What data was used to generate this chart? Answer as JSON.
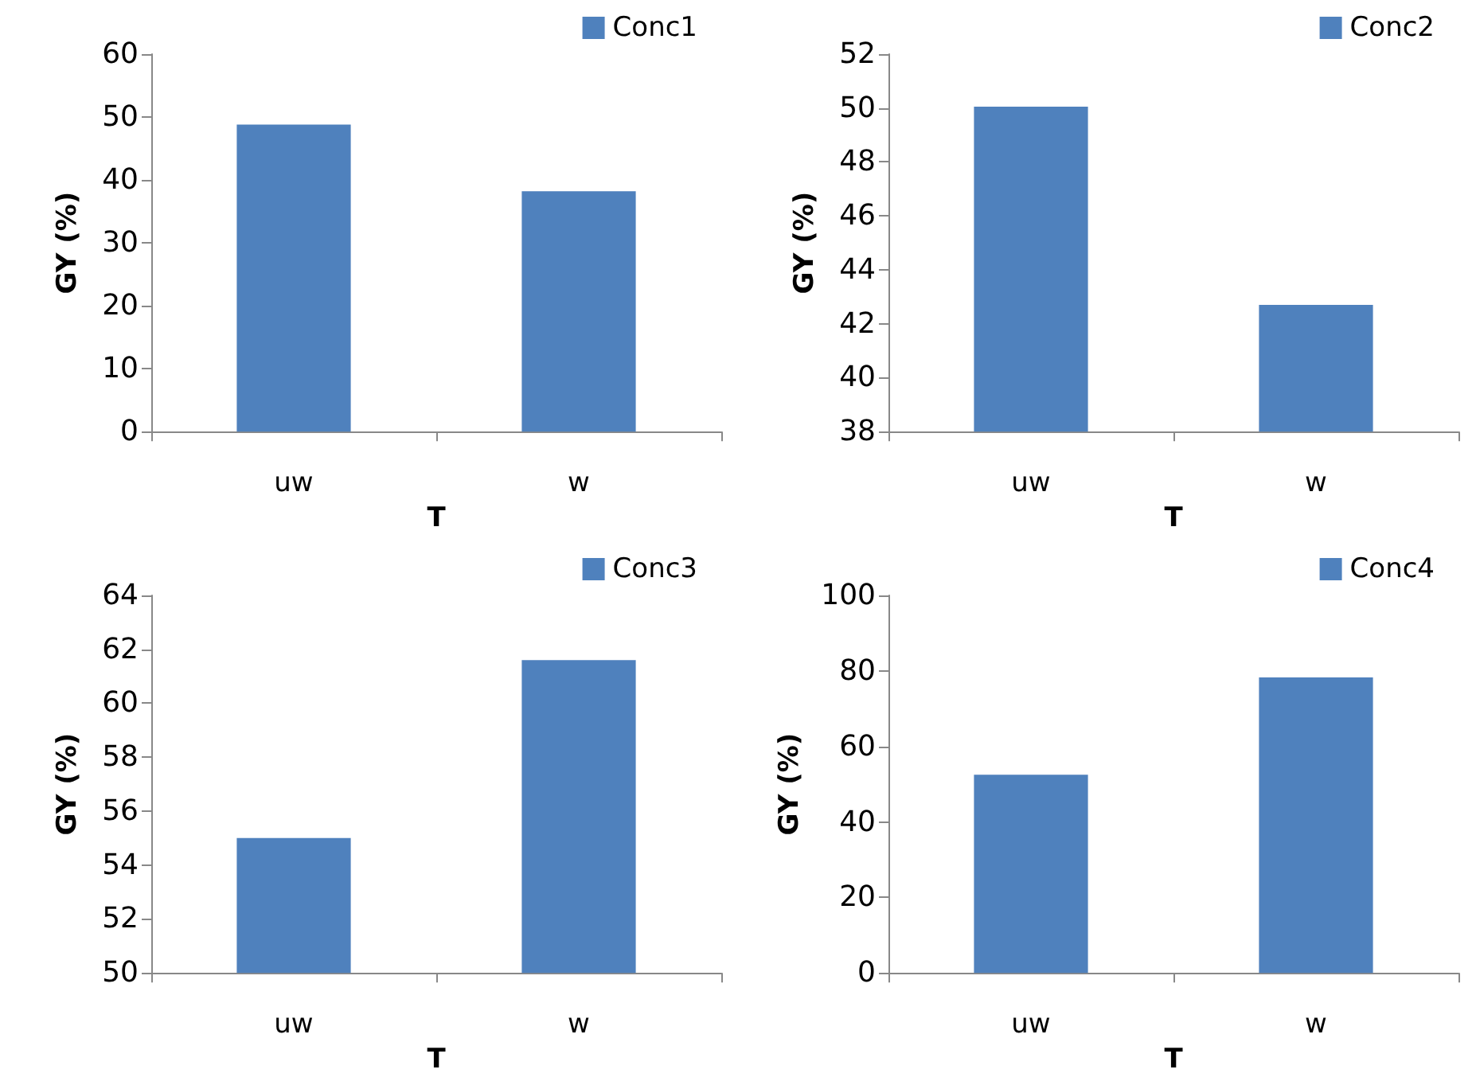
{
  "chart_data": [
    {
      "type": "bar",
      "categories": [
        "uw",
        "w"
      ],
      "xlabel": "T",
      "ylabel": "GY (%)",
      "series": [
        {
          "name": "Conc1",
          "color": "#4f81bd",
          "values": [
            48.8,
            38.2
          ]
        }
      ],
      "ylim": [
        0,
        60
      ],
      "yticks": [
        0,
        10,
        20,
        30,
        40,
        50,
        60
      ],
      "grid": false,
      "legend": "top right"
    },
    {
      "type": "bar",
      "categories": [
        "uw",
        "w"
      ],
      "xlabel": "T",
      "ylabel": "GY (%)",
      "series": [
        {
          "name": "Conc2",
          "color": "#4f81bd",
          "values": [
            50.05,
            42.7
          ]
        }
      ],
      "ylim": [
        38,
        52
      ],
      "yticks": [
        38,
        40,
        42,
        44,
        46,
        48,
        50,
        52
      ],
      "grid": false,
      "legend": "top right"
    },
    {
      "type": "bar",
      "categories": [
        "uw",
        "w"
      ],
      "xlabel": "T",
      "ylabel": "GY (%)",
      "series": [
        {
          "name": "Conc3",
          "color": "#4f81bd",
          "values": [
            55.0,
            61.6
          ]
        }
      ],
      "ylim": [
        50,
        64
      ],
      "yticks": [
        50,
        52,
        54,
        56,
        58,
        60,
        62,
        64
      ],
      "grid": false,
      "legend": "top right"
    },
    {
      "type": "bar",
      "categories": [
        "uw",
        "w"
      ],
      "xlabel": "T",
      "ylabel": "GY (%)",
      "series": [
        {
          "name": "Conc4",
          "color": "#4f81bd",
          "values": [
            52.5,
            78.3
          ]
        }
      ],
      "ylim": [
        0,
        100
      ],
      "yticks": [
        0,
        20,
        40,
        60,
        80,
        100
      ],
      "grid": false,
      "legend": "top right"
    }
  ]
}
